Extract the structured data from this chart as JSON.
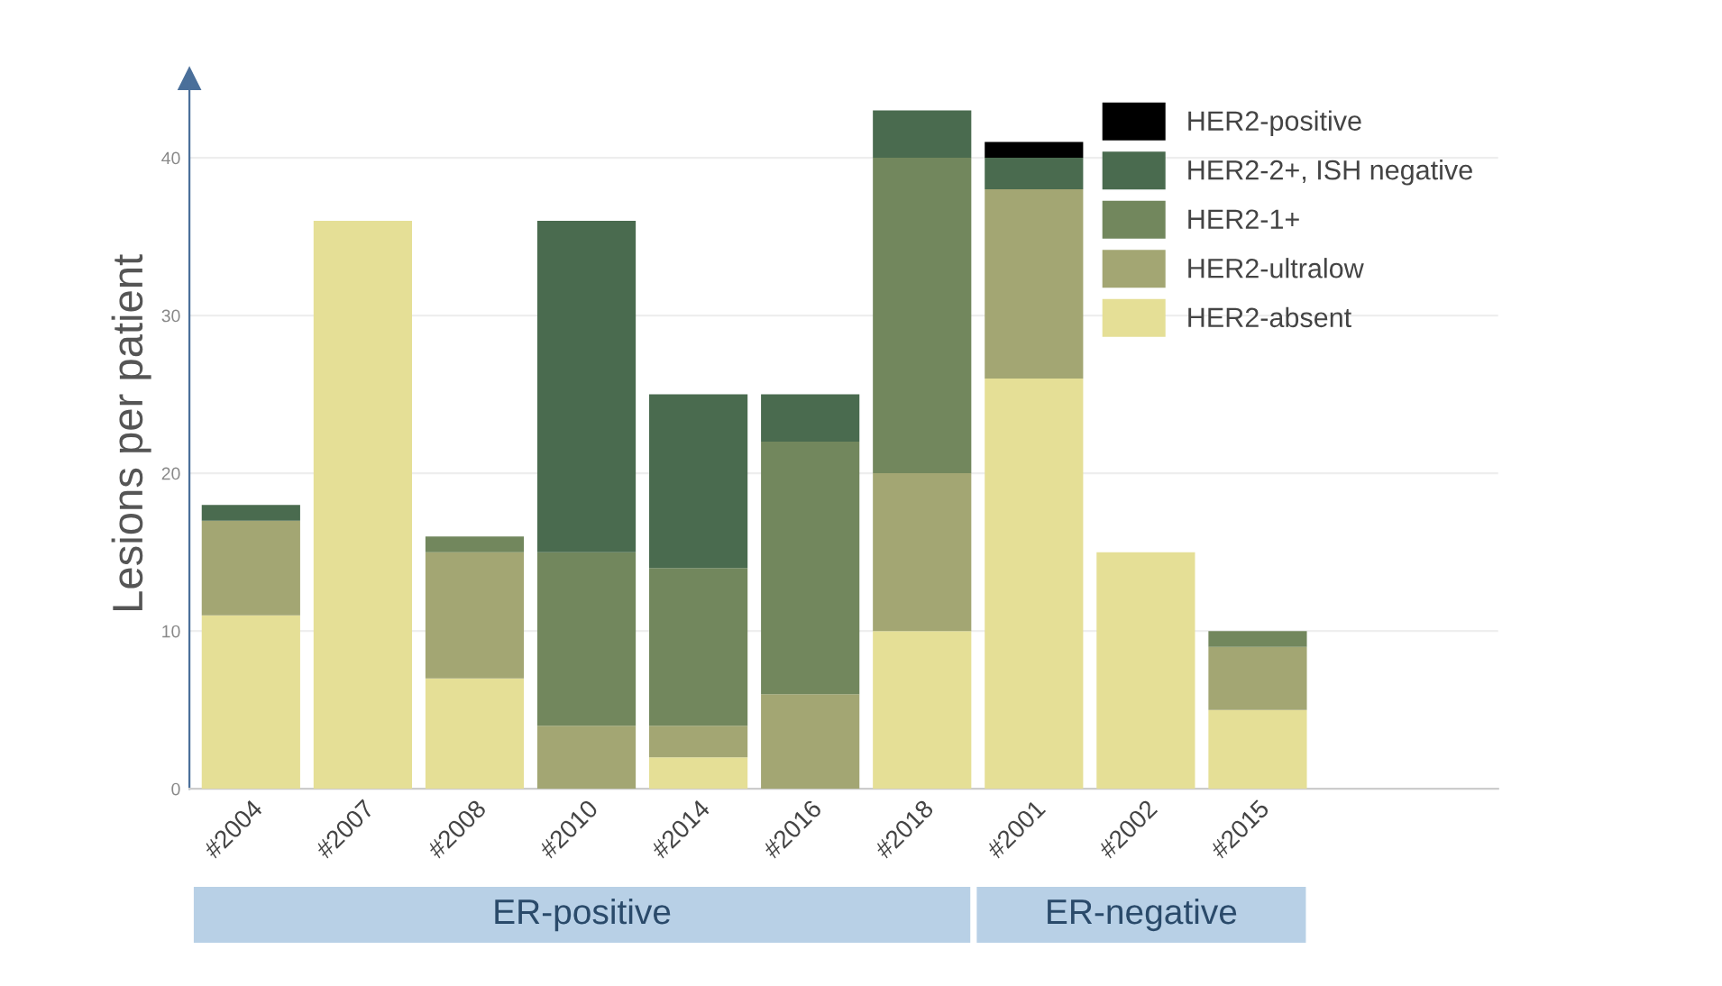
{
  "chart_data": {
    "type": "bar",
    "stacked": true,
    "ylabel": "Lesions per patient",
    "categories": [
      "#2004",
      "#2007",
      "#2008",
      "#2010",
      "#2014",
      "#2016",
      "#2018",
      "#2001",
      "#2002",
      "#2015"
    ],
    "series": [
      {
        "name": "HER2-absent",
        "color": "#e5df96",
        "values": [
          11,
          36,
          7,
          0,
          2,
          0,
          10,
          26,
          15,
          5
        ]
      },
      {
        "name": "HER2-ultralow",
        "color": "#a3a673",
        "values": [
          6,
          0,
          8,
          4,
          2,
          6,
          10,
          12,
          0,
          4
        ]
      },
      {
        "name": "HER2-1+",
        "color": "#72875d",
        "values": [
          0,
          0,
          1,
          11,
          10,
          16,
          20,
          0,
          0,
          1
        ]
      },
      {
        "name": "HER2-2+, ISH negative",
        "color": "#4a6b4f",
        "values": [
          1,
          0,
          0,
          21,
          11,
          3,
          3,
          2,
          0,
          0
        ]
      },
      {
        "name": "HER2-positive",
        "color": "#000000",
        "values": [
          0,
          0,
          0,
          0,
          0,
          0,
          0,
          1,
          0,
          0
        ]
      }
    ],
    "ylim": [
      0,
      45
    ],
    "yticks": [
      0,
      10,
      20,
      30,
      40
    ],
    "grid": "y",
    "legend": "top right",
    "annotations": [
      "ER-positive",
      "ER-negative"
    ]
  }
}
